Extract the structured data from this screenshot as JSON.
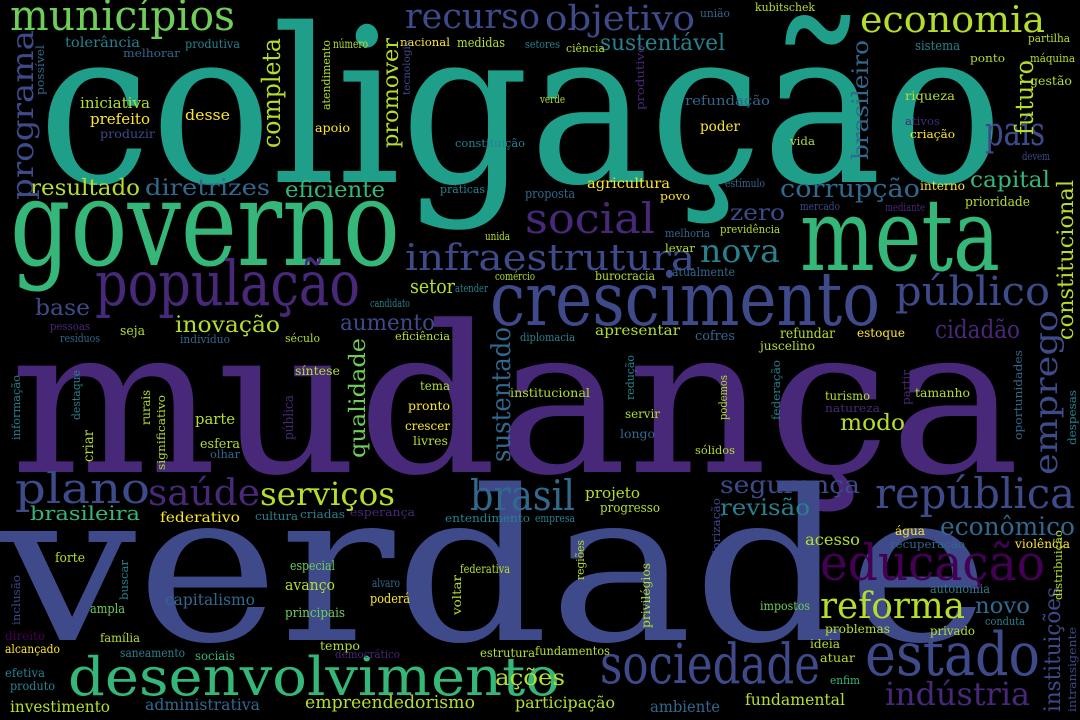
{
  "words": [
    "coligação",
    "mudança",
    "verdade",
    "governo",
    "meta",
    "crescimento",
    "população",
    "sociedade",
    "estado",
    "desenvolvimento",
    "educação",
    "república",
    "municípios",
    "recurso",
    "objetivo",
    "economia",
    "país",
    "social",
    "infraestrutura",
    "nova",
    "público",
    "plano",
    "saúde",
    "serviços",
    "brasil",
    "reforma",
    "indústria",
    "segurança",
    "revisão",
    "econômico",
    "sustentável",
    "resultado",
    "diretrizes",
    "eficiente",
    "corrupção",
    "capital",
    "zero",
    "setor",
    "base",
    "aumento",
    "inovação",
    "cidadão",
    "modo",
    "brasileira",
    "projeto",
    "progresso",
    "novo",
    "ações",
    "empreendedorismo",
    "participação",
    "ambiente",
    "fundamental",
    "investimento",
    "administrativa",
    "federativo",
    "acesso",
    "água",
    "violência",
    "recuperação",
    "capitalismo",
    "avanço",
    "poderá",
    "alvaro",
    "especial",
    "principais",
    "forte",
    "ampla",
    "família",
    "saneamento",
    "sociais",
    "tempo",
    "democrático",
    "estrutura",
    "fundamentos",
    "federativa",
    "entendimento",
    "empresa",
    "cultura",
    "criadas",
    "esperança",
    "impostos",
    "autonomia",
    "problemas",
    "privado",
    "conduta",
    "ideia",
    "atuar",
    "enfim",
    "alcançado",
    "direito",
    "efetiva",
    "produto",
    "tolerância",
    "produtiva",
    "melhorar",
    "iniciativa",
    "prefeito",
    "desse",
    "produzir",
    "apoio",
    "número",
    "nacional",
    "medidas",
    "setores",
    "ciência",
    "união",
    "kubitschek",
    "sistema",
    "partilha",
    "máquina",
    "ponto",
    "gestão",
    "verde",
    "refundação",
    "poder",
    "riqueza",
    "vida",
    "ativos",
    "criação",
    "devem",
    "constituição",
    "práticas",
    "proposta",
    "agricultura",
    "povo",
    "estímulo",
    "interno",
    "mercado",
    "mediante",
    "prioridade",
    "melhoria",
    "previdência",
    "levar",
    "unida",
    "comércio",
    "burocracia",
    "atualmente",
    "atender",
    "candidato",
    "pessoas",
    "seja",
    "resíduos",
    "indivíduo",
    "século",
    "eficiência",
    "diplomacia",
    "apresentar",
    "cofres",
    "refundar",
    "estoque",
    "juscelino",
    "tema",
    "pronto",
    "crescer",
    "livres",
    "síntese",
    "parte",
    "esfera",
    "olhar",
    "institucional",
    "servir",
    "longo",
    "sólidos",
    "turismo",
    "natureza",
    "tamanho",
    "programa",
    "emprego",
    "constitucional",
    "futuro",
    "brasileiro",
    "completa",
    "promover",
    "sustentado",
    "qualidade",
    "instituições",
    "possível",
    "atendimento",
    "tecnologia",
    "produtivo",
    "criar",
    "informação",
    "destaque",
    "rurais",
    "significativo",
    "pública",
    "redução",
    "podemos",
    "federação",
    "partir",
    "oportunidades",
    "despesas",
    "inclusão",
    "buscar",
    "regiões",
    "privilégios",
    "interiorização",
    "distribuição",
    "intransigente",
    "voltar"
  ]
}
